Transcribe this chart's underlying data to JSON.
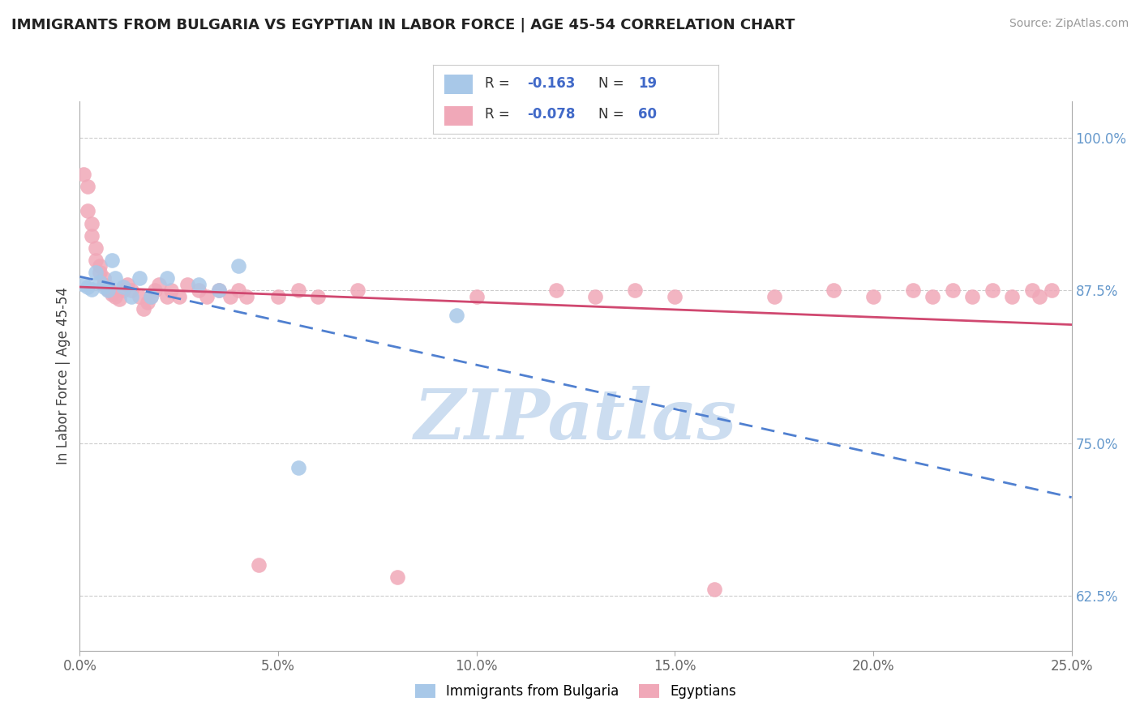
{
  "title": "IMMIGRANTS FROM BULGARIA VS EGYPTIAN IN LABOR FORCE | AGE 45-54 CORRELATION CHART",
  "source": "Source: ZipAtlas.com",
  "xlabel": "",
  "ylabel": "In Labor Force | Age 45-54",
  "xlim": [
    0.0,
    0.25
  ],
  "ylim": [
    0.58,
    1.03
  ],
  "xticks": [
    0.0,
    0.05,
    0.1,
    0.15,
    0.2,
    0.25
  ],
  "xtick_labels": [
    "0.0%",
    "5.0%",
    "10.0%",
    "15.0%",
    "20.0%",
    "25.0%"
  ],
  "yticks": [
    0.625,
    0.75,
    0.875,
    1.0
  ],
  "ytick_labels": [
    "62.5%",
    "75.0%",
    "87.5%",
    "100.0%"
  ],
  "grid_color": "#cccccc",
  "background_color": "#ffffff",
  "watermark": "ZIPatlas",
  "watermark_color": "#ccddf0",
  "legend_r1_val": "-0.163",
  "legend_n1_val": "19",
  "legend_r2_val": "-0.078",
  "legend_n2_val": "60",
  "blue_color": "#a8c8e8",
  "pink_color": "#f0a8b8",
  "blue_line_color": "#5080d0",
  "pink_line_color": "#d04870",
  "label1": "Immigrants from Bulgaria",
  "label2": "Egyptians",
  "bulgaria_x": [
    0.001,
    0.002,
    0.003,
    0.004,
    0.005,
    0.006,
    0.007,
    0.008,
    0.009,
    0.011,
    0.013,
    0.015,
    0.018,
    0.022,
    0.03,
    0.035,
    0.04,
    0.055,
    0.095
  ],
  "bulgaria_y": [
    0.88,
    0.878,
    0.876,
    0.89,
    0.882,
    0.878,
    0.875,
    0.9,
    0.885,
    0.878,
    0.87,
    0.885,
    0.87,
    0.885,
    0.88,
    0.875,
    0.895,
    0.73,
    0.855
  ],
  "egypt_x": [
    0.001,
    0.002,
    0.002,
    0.003,
    0.003,
    0.004,
    0.004,
    0.005,
    0.005,
    0.006,
    0.006,
    0.007,
    0.007,
    0.008,
    0.008,
    0.009,
    0.01,
    0.011,
    0.012,
    0.013,
    0.015,
    0.016,
    0.017,
    0.018,
    0.019,
    0.02,
    0.022,
    0.023,
    0.025,
    0.027,
    0.03,
    0.032,
    0.035,
    0.038,
    0.04,
    0.042,
    0.045,
    0.05,
    0.055,
    0.06,
    0.07,
    0.08,
    0.1,
    0.12,
    0.13,
    0.14,
    0.15,
    0.16,
    0.175,
    0.19,
    0.2,
    0.21,
    0.215,
    0.22,
    0.225,
    0.23,
    0.235,
    0.24,
    0.242,
    0.245
  ],
  "egypt_y": [
    0.97,
    0.96,
    0.94,
    0.93,
    0.92,
    0.91,
    0.9,
    0.895,
    0.89,
    0.885,
    0.88,
    0.878,
    0.876,
    0.874,
    0.872,
    0.87,
    0.868,
    0.875,
    0.88,
    0.875,
    0.87,
    0.86,
    0.865,
    0.87,
    0.875,
    0.88,
    0.87,
    0.875,
    0.87,
    0.88,
    0.875,
    0.87,
    0.875,
    0.87,
    0.875,
    0.87,
    0.65,
    0.87,
    0.875,
    0.87,
    0.875,
    0.64,
    0.87,
    0.875,
    0.87,
    0.875,
    0.87,
    0.63,
    0.87,
    0.875,
    0.87,
    0.875,
    0.87,
    0.875,
    0.87,
    0.875,
    0.87,
    0.875,
    0.87,
    0.875
  ]
}
